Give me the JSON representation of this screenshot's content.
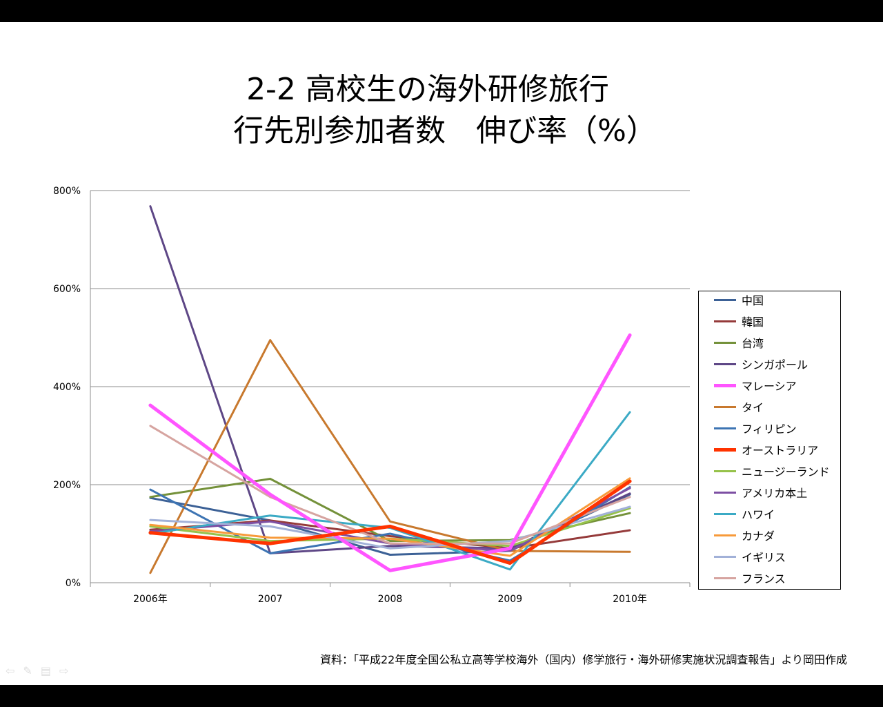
{
  "slide": {
    "title_line1": "2-2 高校生の海外研修旅行",
    "title_line2": "行先別参加者数　伸び率（%）",
    "source": "資料：「平成22年度全国公私立高等学校海外（国内）修学旅行・海外研修実施状況調査報告」より岡田作成"
  },
  "nav": {
    "prev_icon": "arrow-left-icon",
    "pen_icon": "pen-icon",
    "menu_icon": "menu-icon",
    "next_icon": "arrow-right-icon"
  },
  "chart_data": {
    "type": "line",
    "categories": [
      "2006年",
      "2007",
      "2008",
      "2009",
      "2010年"
    ],
    "ylim": [
      0,
      800
    ],
    "yticks": [
      "0%",
      "200%",
      "400%",
      "600%",
      "800%"
    ],
    "grid": true,
    "legend_position": "right",
    "series": [
      {
        "name": "中国",
        "color": "#3C6196",
        "width": 3,
        "values": [
          173,
          127,
          57,
          65,
          180
        ]
      },
      {
        "name": "韓国",
        "color": "#953A3A",
        "width": 3,
        "values": [
          108,
          127,
          95,
          70,
          107
        ]
      },
      {
        "name": "台湾",
        "color": "#74913A",
        "width": 3,
        "values": [
          175,
          212,
          85,
          87,
          142
        ]
      },
      {
        "name": "シンガポール",
        "color": "#5E4786",
        "width": 3,
        "values": [
          768,
          60,
          75,
          70,
          182
        ]
      },
      {
        "name": "マレーシア",
        "color": "#FF55FF",
        "width": 5,
        "values": [
          362,
          180,
          25,
          70,
          505
        ]
      },
      {
        "name": "タイ",
        "color": "#C8792E",
        "width": 3,
        "values": [
          20,
          495,
          125,
          65,
          63
        ]
      },
      {
        "name": "フィリピン",
        "color": "#3D74B3",
        "width": 3,
        "values": [
          190,
          60,
          100,
          45,
          195
        ]
      },
      {
        "name": "オーストラリア",
        "color": "#FF3300",
        "width": 5,
        "values": [
          102,
          80,
          115,
          40,
          207
        ]
      },
      {
        "name": "ニュージーランド",
        "color": "#96C24A",
        "width": 3,
        "values": [
          115,
          85,
          90,
          75,
          152
        ]
      },
      {
        "name": "アメリカ本土",
        "color": "#7D4FA3",
        "width": 3,
        "values": [
          105,
          125,
          80,
          65,
          193
        ]
      },
      {
        "name": "ハワイ",
        "color": "#3BAAC5",
        "width": 3,
        "values": [
          100,
          137,
          112,
          27,
          348
        ]
      },
      {
        "name": "カナダ",
        "color": "#F79A3A",
        "width": 3,
        "values": [
          118,
          92,
          90,
          55,
          213
        ]
      },
      {
        "name": "イギリス",
        "color": "#A2B1D8",
        "width": 3,
        "values": [
          128,
          115,
          70,
          85,
          155
        ]
      },
      {
        "name": "フランス",
        "color": "#D6A4A0",
        "width": 3,
        "values": [
          320,
          175,
          80,
          80,
          175
        ]
      }
    ]
  }
}
